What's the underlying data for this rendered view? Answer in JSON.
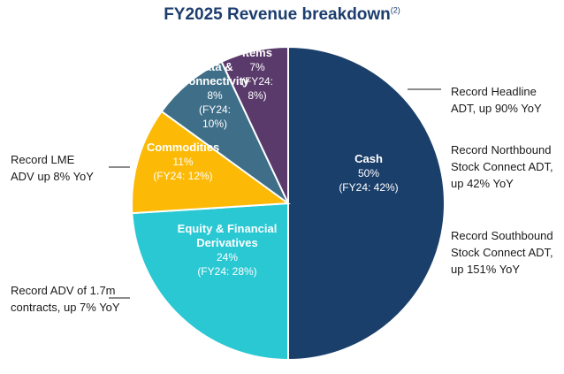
{
  "chart_data": {
    "type": "pie",
    "title": "FY2025 Revenue breakdown",
    "title_footnote": "(2)",
    "slices": [
      {
        "label": "Cash",
        "value": 50,
        "value_text": "50%",
        "prior": "(FY24: 42%)",
        "color": "#1b3f6b"
      },
      {
        "label": "Equity & Financial Derivatives",
        "value": 24,
        "value_text": "24%",
        "prior": "(FY24: 28%)",
        "color": "#29c8d3"
      },
      {
        "label": "Commodities",
        "value": 11,
        "value_text": "11%",
        "prior": "(FY24: 12%)",
        "color": "#fcba07"
      },
      {
        "label": "Data & Connectivity",
        "value": 8,
        "value_text": "8%",
        "prior": "(FY24: 10%)",
        "color": "#3f6f88"
      },
      {
        "label": "Corporate Items",
        "value": 7,
        "value_text": "7%",
        "prior": "(FY24: 8%)",
        "color": "#5a3a6b"
      }
    ],
    "annotations": [
      {
        "text": "Record Headline ADT, up 90% YoY",
        "lines": [
          "Record Headline",
          "ADT, up 90% YoY"
        ]
      },
      {
        "text": "Record Northbound Stock Connect ADT, up 42% YoY",
        "lines": [
          "Record Northbound",
          "Stock Connect ADT,",
          "up 42% YoY"
        ]
      },
      {
        "text": "Record Southbound Stock Connect ADT, up 151% YoY",
        "lines": [
          "Record Southbound",
          "Stock Connect ADT,",
          "up 151% YoY"
        ]
      },
      {
        "text": "Record LME ADV up 8% YoY",
        "lines": [
          "Record LME",
          "ADV up 8% YoY"
        ]
      },
      {
        "text": "Record ADV of 1.7m contracts, up 7% YoY",
        "lines": [
          "Record ADV of 1.7m",
          "contracts, up 7% YoY"
        ]
      }
    ]
  }
}
